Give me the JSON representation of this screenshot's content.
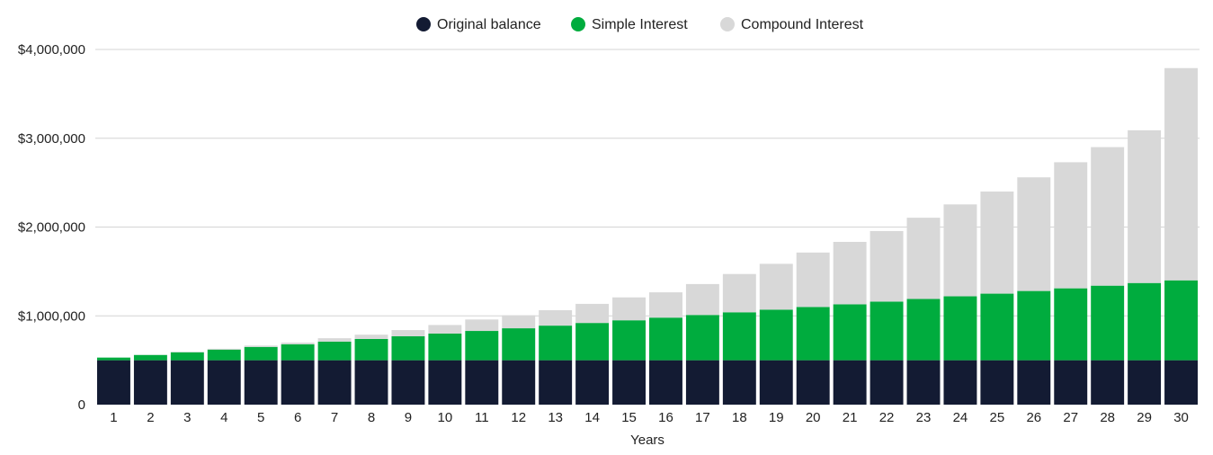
{
  "chart_data": {
    "type": "bar",
    "stacked": true,
    "title": "",
    "xlabel": "Years",
    "ylabel": "",
    "categories": [
      "1",
      "2",
      "3",
      "4",
      "5",
      "6",
      "7",
      "8",
      "9",
      "10",
      "11",
      "12",
      "13",
      "14",
      "15",
      "16",
      "17",
      "18",
      "19",
      "20",
      "21",
      "22",
      "23",
      "24",
      "25",
      "26",
      "27",
      "28",
      "29",
      "30"
    ],
    "yticks": [
      {
        "value": 0,
        "label": "0"
      },
      {
        "value": 1000000,
        "label": "$1,000,000"
      },
      {
        "value": 2000000,
        "label": "$2,000,000"
      },
      {
        "value": 3000000,
        "label": "$3,000,000"
      },
      {
        "value": 4000000,
        "label": "$4,000,000"
      }
    ],
    "ylim": [
      0,
      4000000
    ],
    "grid": true,
    "legend_position": "top-center",
    "series": [
      {
        "name": "Original balance",
        "color": "#131b33",
        "values": [
          500000,
          500000,
          500000,
          500000,
          500000,
          500000,
          500000,
          500000,
          500000,
          500000,
          500000,
          500000,
          500000,
          500000,
          500000,
          500000,
          500000,
          500000,
          500000,
          500000,
          500000,
          500000,
          500000,
          500000,
          500000,
          500000,
          500000,
          500000,
          500000,
          500000
        ]
      },
      {
        "name": "Simple Interest",
        "color": "#00ac3e",
        "values": [
          30000,
          60000,
          90000,
          120000,
          150000,
          180000,
          210000,
          240000,
          270000,
          300000,
          330000,
          360000,
          390000,
          420000,
          450000,
          480000,
          510000,
          540000,
          570000,
          600000,
          630000,
          660000,
          690000,
          720000,
          750000,
          780000,
          810000,
          840000,
          870000,
          900000
        ]
      },
      {
        "name": "Compound Interest",
        "color": "#d8d8d8",
        "values": [
          0,
          2000,
          5000,
          9000,
          15000,
          19000,
          38000,
          48000,
          70000,
          97000,
          129000,
          146000,
          174000,
          215000,
          258000,
          285000,
          348000,
          431000,
          516000,
          613000,
          703000,
          795000,
          915000,
          1035000,
          1150000,
          1280000,
          1420000,
          1560000,
          1720000,
          2390000
        ]
      }
    ]
  }
}
